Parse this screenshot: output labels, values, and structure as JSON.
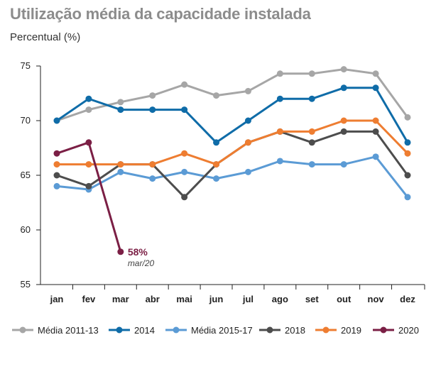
{
  "chart_data": {
    "type": "line",
    "title": "Utilização média da capacidade instalada",
    "subtitle": "Percentual (%)",
    "xlabel": "",
    "ylabel": "Percentual (%)",
    "ylim": [
      55,
      75
    ],
    "yticks": [
      "75",
      "70",
      "65",
      "60",
      "55"
    ],
    "grid": false,
    "legend": "bottom",
    "categories": [
      "jan",
      "fev",
      "mar",
      "abr",
      "mai",
      "jun",
      "jul",
      "ago",
      "set",
      "out",
      "nov",
      "dez"
    ],
    "series": [
      {
        "name": "Média 2011-13",
        "color": "#a6a6a6",
        "values": [
          70.0,
          71.0,
          71.7,
          72.3,
          73.3,
          72.3,
          72.7,
          74.3,
          74.3,
          74.7,
          74.3,
          70.3
        ]
      },
      {
        "name": "2014",
        "color": "#0f6ca8",
        "values": [
          70,
          72,
          71,
          71,
          71,
          68,
          70,
          72,
          72,
          73,
          73,
          68
        ]
      },
      {
        "name": "Média 2015-17",
        "color": "#5b9bd5",
        "values": [
          64.0,
          63.7,
          65.3,
          64.7,
          65.3,
          64.7,
          65.3,
          66.3,
          66.0,
          66.0,
          66.7,
          63.0
        ]
      },
      {
        "name": "2018",
        "color": "#4d4d4d",
        "values": [
          65,
          64,
          66,
          66,
          63,
          66,
          68,
          69,
          68,
          69,
          69,
          65
        ]
      },
      {
        "name": "2019",
        "color": "#ee7d31",
        "values": [
          66,
          66,
          66,
          66,
          67,
          66,
          68,
          69,
          69,
          70,
          70,
          67
        ]
      },
      {
        "name": "2020",
        "color": "#7b1f45",
        "values": [
          67,
          68,
          58,
          null,
          null,
          null,
          null,
          null,
          null,
          null,
          null,
          null
        ]
      }
    ],
    "annotation": {
      "value_label": "58%",
      "date_label": "mar/20",
      "series": "2020",
      "category": "mar"
    }
  }
}
